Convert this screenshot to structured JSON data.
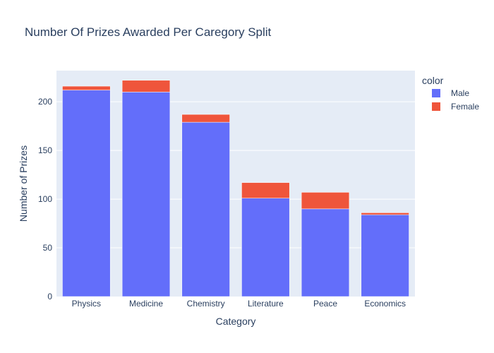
{
  "chart_data": {
    "type": "bar",
    "barmode": "stack",
    "title": "Number Of Prizes Awarded Per Caregory Split",
    "xlabel": "Category",
    "ylabel": "Number of Prizes",
    "categories": [
      "Physics",
      "Medicine",
      "Chemistry",
      "Literature",
      "Peace",
      "Economics"
    ],
    "series": [
      {
        "name": "Male",
        "color": "#636efa",
        "values": [
          212,
          210,
          179,
          101,
          90,
          84
        ]
      },
      {
        "name": "Female",
        "color": "#ef553b",
        "values": [
          4,
          12,
          8,
          16,
          17,
          2
        ]
      }
    ],
    "ylim": [
      0,
      232
    ],
    "yticks": [
      0,
      50,
      100,
      150,
      200
    ],
    "legend": {
      "title": "color",
      "placement": "top-right"
    },
    "grid": true
  }
}
